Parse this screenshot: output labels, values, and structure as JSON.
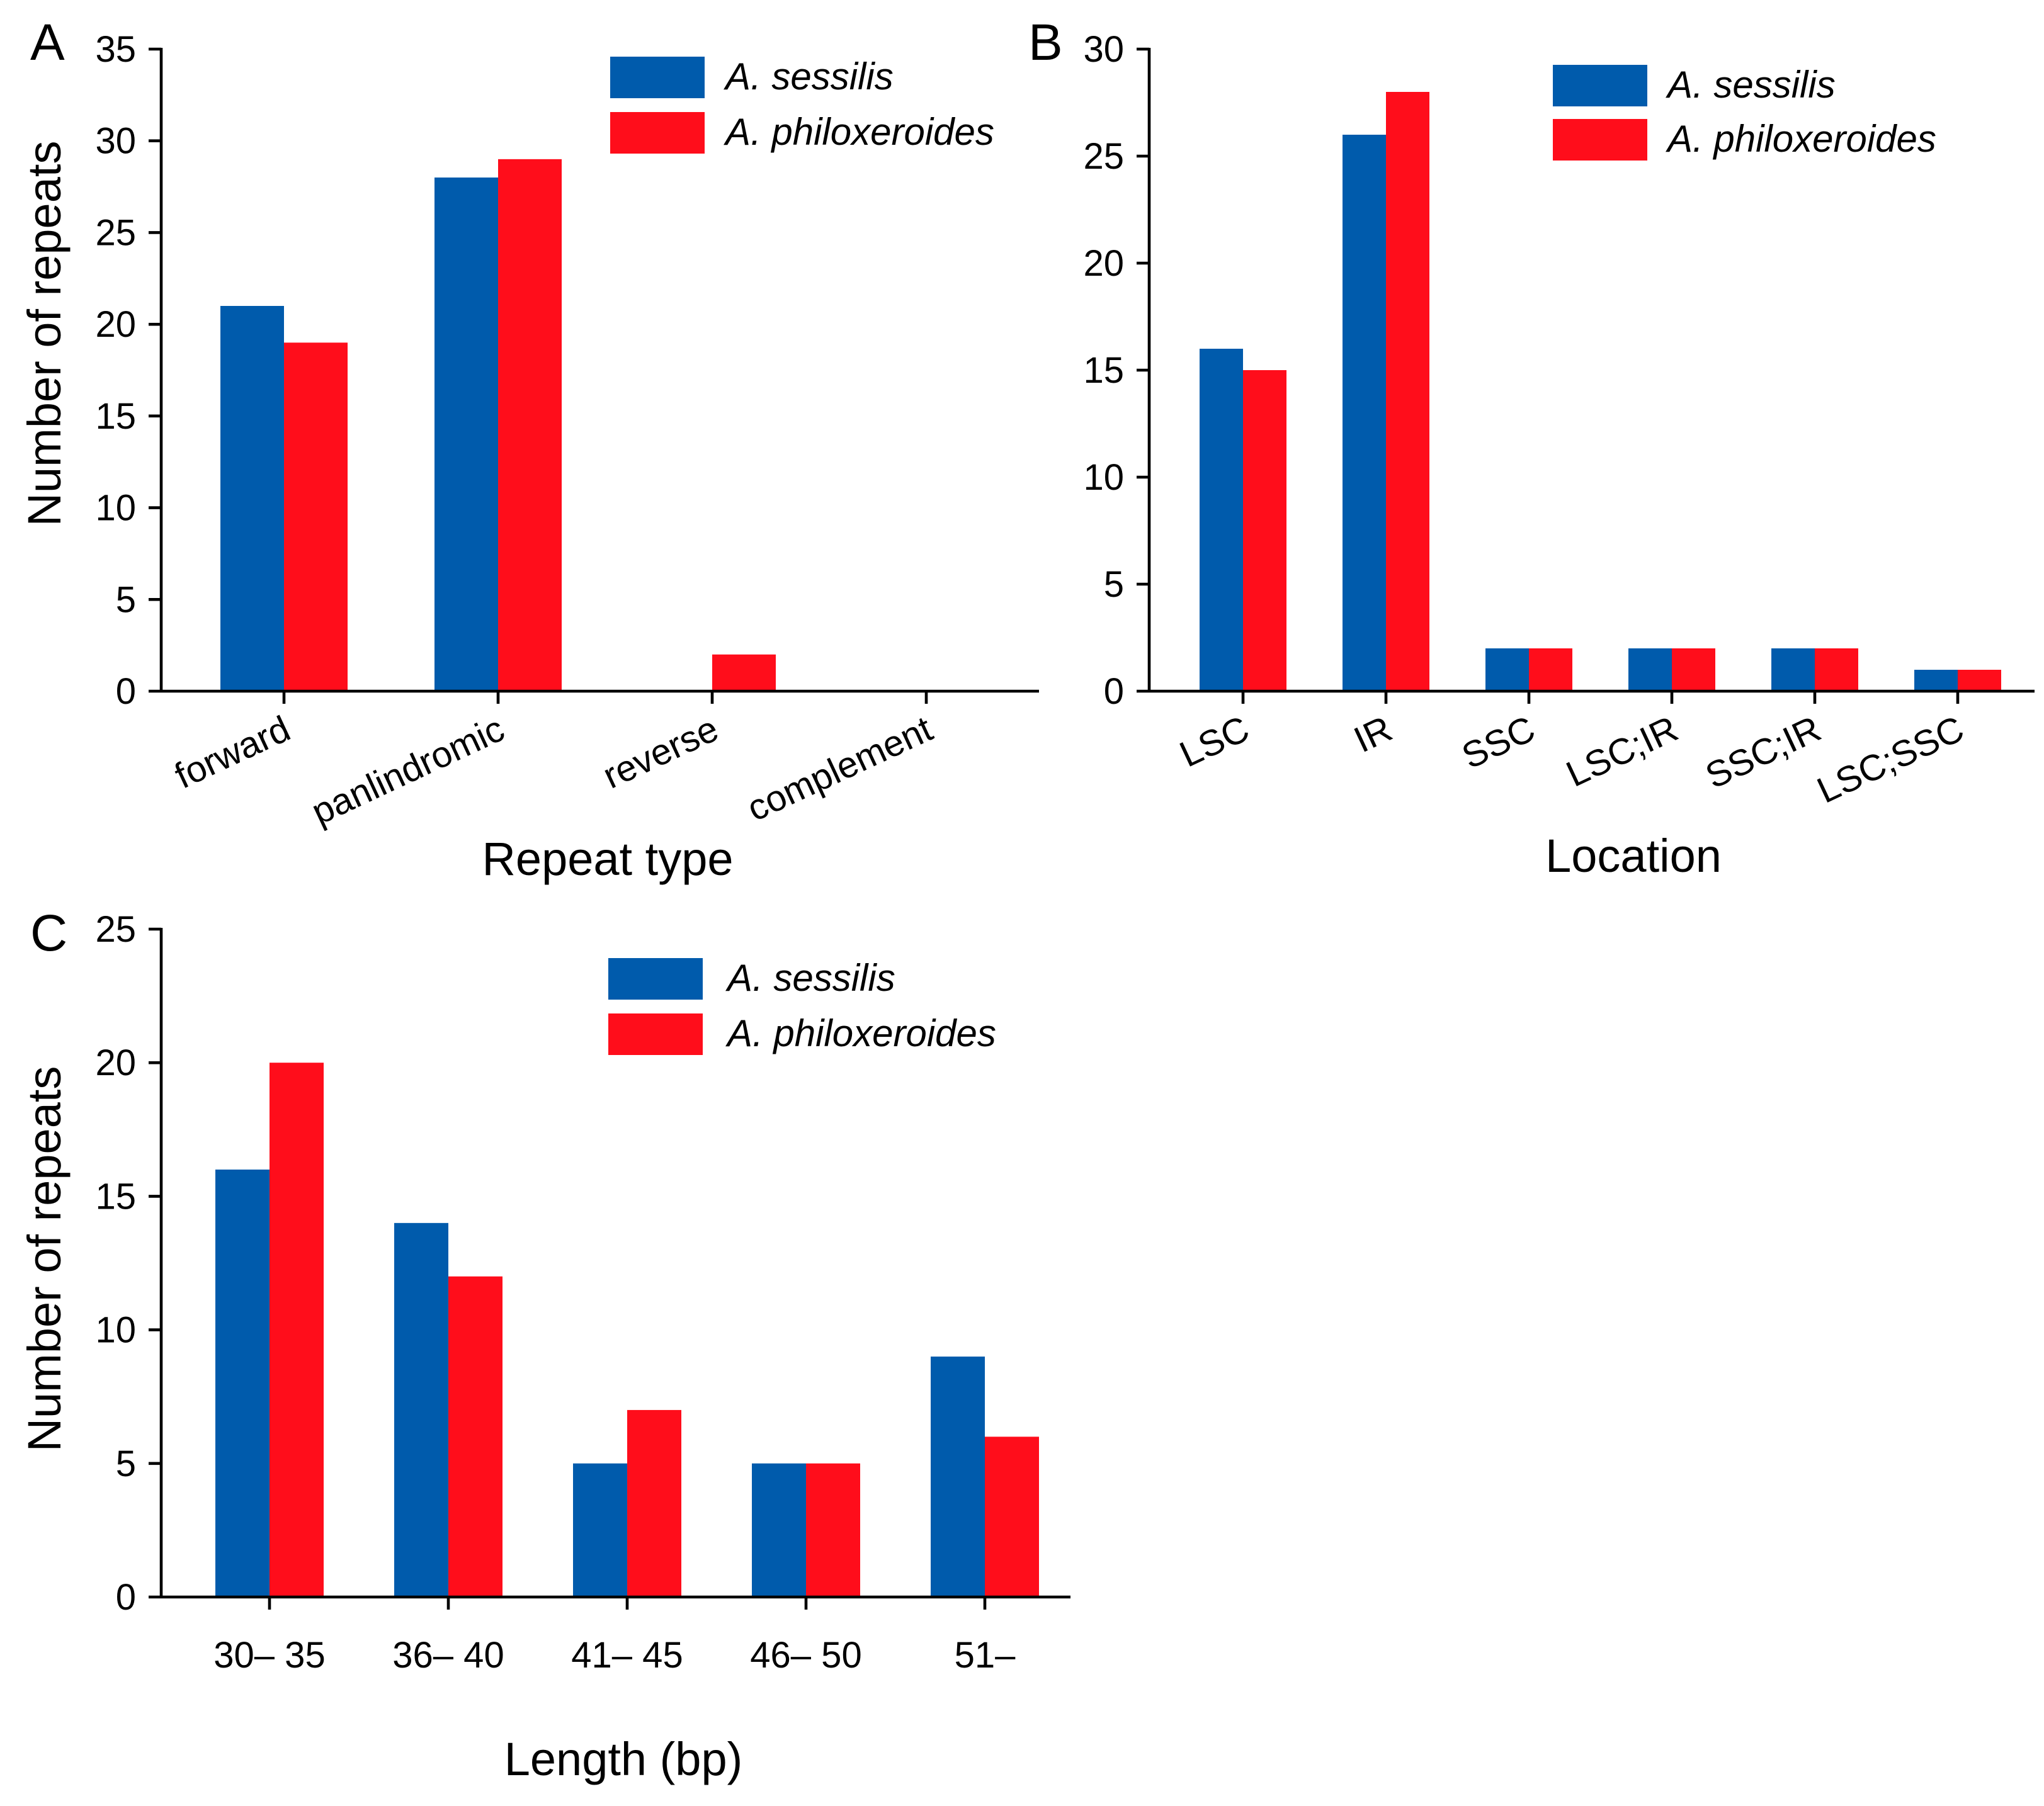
{
  "colors": {
    "sessilis": "#005BAC",
    "philoxeroides": "#FF0D1B"
  },
  "chart_data": [
    {
      "panel": "A",
      "type": "bar",
      "xlabel": "Repeat type",
      "ylabel": "Number of repeats",
      "ylim": [
        0,
        35
      ],
      "yticks": [
        "0",
        "5",
        "10",
        "15",
        "20",
        "25",
        "30",
        "35"
      ],
      "categories": [
        "forward",
        "panlindromic",
        "reverse",
        "complement"
      ],
      "series": [
        {
          "name": "A. sessilis",
          "values": [
            21,
            28,
            0,
            0
          ]
        },
        {
          "name": "A. philoxeroides",
          "values": [
            19,
            29,
            2,
            0
          ]
        }
      ],
      "legend": "top-right"
    },
    {
      "panel": "B",
      "type": "bar",
      "xlabel": "Location",
      "ylabel": "",
      "ylim": [
        0,
        30
      ],
      "yticks": [
        "0",
        "5",
        "10",
        "15",
        "20",
        "25",
        "30"
      ],
      "categories": [
        "LSC",
        "IR",
        "SSC",
        "LSC;IR",
        "SSC;IR",
        "LSC;SSC"
      ],
      "series": [
        {
          "name": "A. sessilis",
          "values": [
            16,
            26,
            2,
            2,
            2,
            1
          ]
        },
        {
          "name": "A. philoxeroides",
          "values": [
            15,
            28,
            2,
            2,
            2,
            1
          ]
        }
      ],
      "legend": "top-right"
    },
    {
      "panel": "C",
      "type": "bar",
      "xlabel": "Length (bp)",
      "ylabel": "Number of repeats",
      "ylim": [
        0,
        25
      ],
      "yticks": [
        "0",
        "5",
        "10",
        "15",
        "20",
        "25"
      ],
      "categories": [
        "30–  35",
        "36–  40",
        "41–  45",
        "46–  50",
        "51–"
      ],
      "series": [
        {
          "name": "A. sessilis",
          "values": [
            16,
            14,
            5,
            5,
            9
          ]
        },
        {
          "name": "A. philoxeroides",
          "values": [
            20,
            12,
            7,
            5,
            6
          ]
        }
      ],
      "legend": "top-right"
    }
  ]
}
